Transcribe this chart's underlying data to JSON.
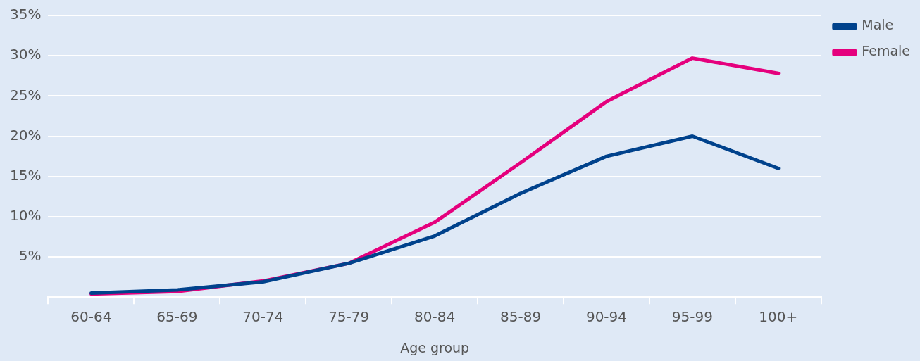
{
  "chart_data": {
    "type": "line",
    "xlabel": "Age group",
    "categories": [
      "60-64",
      "65-69",
      "70-74",
      "75-79",
      "80-84",
      "85-89",
      "90-94",
      "95-99",
      "100+"
    ],
    "series": [
      {
        "name": "Male",
        "color": "#00428c",
        "values": [
          0.5,
          0.9,
          1.9,
          4.2,
          7.6,
          12.9,
          17.5,
          20.0,
          16.0
        ]
      },
      {
        "name": "Female",
        "color": "#e5007d",
        "values": [
          0.4,
          0.7,
          2.0,
          4.2,
          9.3,
          16.7,
          24.3,
          29.7,
          27.8
        ]
      }
    ],
    "ylim": [
      0,
      35
    ],
    "yticks": [
      {
        "value": 0,
        "label": null
      },
      {
        "value": 5,
        "label": "5%"
      },
      {
        "value": 10,
        "label": "10%"
      },
      {
        "value": 15,
        "label": "15%"
      },
      {
        "value": 20,
        "label": "20%"
      },
      {
        "value": 25,
        "label": "25%"
      },
      {
        "value": 30,
        "label": "30%"
      },
      {
        "value": 35,
        "label": "35%"
      }
    ],
    "grid": "y",
    "legend": "top right",
    "marker": "none",
    "line_style": "solid"
  }
}
